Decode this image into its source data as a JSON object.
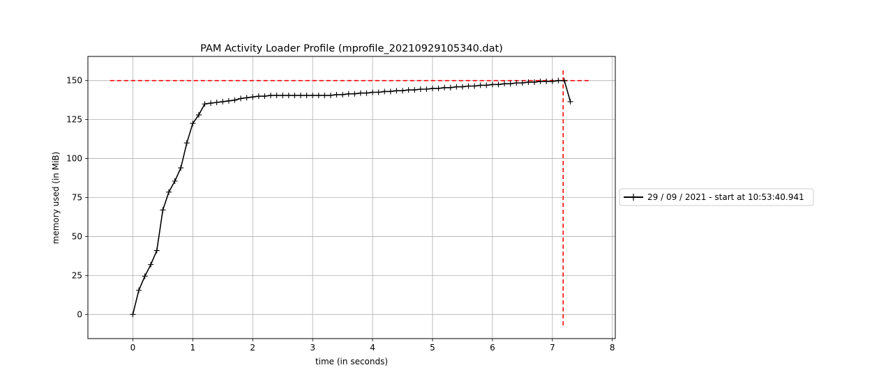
{
  "chart_data": {
    "type": "line",
    "title": "PAM Activity Loader Profile (mprofile_20210929105340.dat)",
    "xlabel": "time (in seconds)",
    "ylabel": "memory used (in MiB)",
    "xlim": [
      -0.75,
      8.05
    ],
    "ylim": [
      -15.5,
      165.5
    ],
    "xticks": [
      0,
      1,
      2,
      3,
      4,
      5,
      6,
      7,
      8
    ],
    "yticks": [
      0,
      25,
      50,
      75,
      100,
      125,
      150
    ],
    "grid": true,
    "legend_position": "right, outside plot",
    "series": [
      {
        "name": "29 / 09 / 2021 - start at 10:53:40.941",
        "color": "#000000",
        "marker": "plus",
        "x": [
          0.0,
          0.1,
          0.2,
          0.3,
          0.4,
          0.5,
          0.6,
          0.7,
          0.8,
          0.9,
          1.0,
          1.1,
          1.2,
          1.3,
          1.4,
          1.5,
          1.6,
          1.7,
          1.8,
          1.9,
          2.0,
          2.1,
          2.2,
          2.3,
          2.4,
          2.5,
          2.6,
          2.7,
          2.8,
          2.9,
          3.0,
          3.1,
          3.2,
          3.3,
          3.4,
          3.5,
          3.6,
          3.7,
          3.8,
          3.9,
          4.0,
          4.1,
          4.2,
          4.3,
          4.4,
          4.5,
          4.6,
          4.7,
          4.8,
          4.9,
          5.0,
          5.1,
          5.2,
          5.3,
          5.4,
          5.5,
          5.6,
          5.7,
          5.8,
          5.9,
          6.0,
          6.1,
          6.2,
          6.3,
          6.4,
          6.5,
          6.6,
          6.7,
          6.8,
          6.9,
          7.0,
          7.1,
          7.2,
          7.3
        ],
        "y": [
          0.0,
          15.5,
          24.5,
          32.0,
          41.0,
          67.0,
          78.5,
          85.5,
          94.0,
          110.0,
          122.5,
          128.0,
          135.0,
          135.5,
          136.0,
          136.5,
          137.0,
          137.5,
          138.5,
          139.0,
          139.5,
          140.0,
          140.0,
          140.5,
          140.5,
          140.5,
          140.5,
          140.5,
          140.5,
          140.5,
          140.5,
          140.5,
          140.5,
          140.5,
          141.0,
          141.0,
          141.5,
          141.5,
          142.0,
          142.0,
          142.5,
          142.5,
          143.0,
          143.0,
          143.5,
          143.5,
          144.0,
          144.0,
          144.5,
          144.5,
          145.0,
          145.0,
          145.5,
          145.5,
          146.0,
          146.0,
          146.5,
          146.5,
          147.0,
          147.0,
          147.5,
          147.5,
          148.0,
          148.0,
          148.5,
          148.5,
          149.0,
          149.0,
          149.5,
          149.5,
          149.5,
          150.0,
          150.0,
          136.5
        ]
      }
    ],
    "annotations": [
      {
        "type": "hline",
        "y": 150.0,
        "x_range": [
          -0.38,
          7.65
        ],
        "color": "#ff0000",
        "style": "dashed"
      },
      {
        "type": "vline",
        "x": 7.18,
        "y_range": [
          -7.0,
          158.0
        ],
        "color": "#ff0000",
        "style": "dashed"
      }
    ]
  }
}
